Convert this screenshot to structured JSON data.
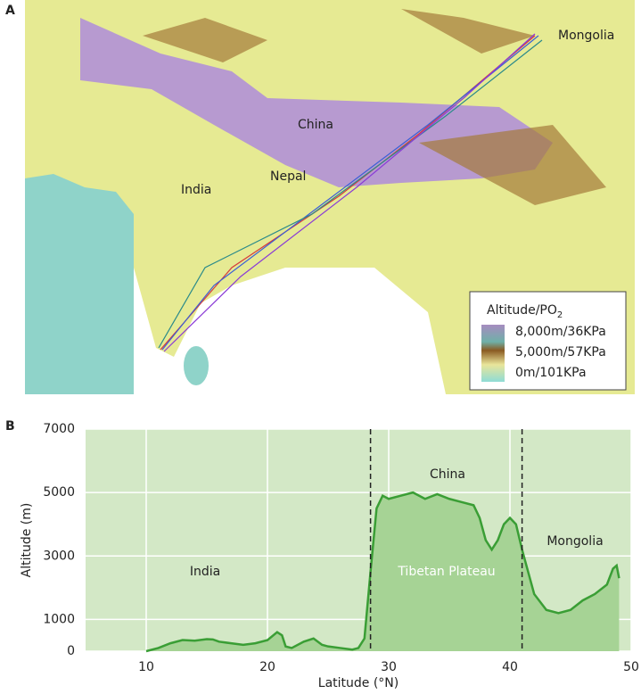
{
  "panel_a": {
    "label": "A",
    "places": [
      "Mongolia",
      "China",
      "Nepal",
      "India"
    ],
    "legend": {
      "title": "Altitude/PO",
      "title_sub": "2",
      "items": [
        "8,000m/36KPa",
        "5,000m/57KPa",
        "0m/101KPa"
      ]
    }
  },
  "chart_data": {
    "type": "area",
    "panel_label": "B",
    "x_label": "Latitude (°N)",
    "y_label": "Altitude (m)",
    "x": [
      10,
      11,
      12,
      13,
      14,
      15,
      15.5,
      16,
      17,
      18,
      19,
      20,
      20.8,
      21.2,
      21.5,
      22,
      23,
      23.8,
      24.5,
      25,
      26,
      27,
      27.5,
      28,
      28.5,
      29,
      29.5,
      30,
      31,
      32,
      33,
      34,
      35,
      36,
      37,
      37.5,
      38,
      38.5,
      39,
      39.5,
      40,
      40.5,
      41,
      42,
      43,
      44,
      45,
      46,
      47,
      48,
      48.5,
      48.8,
      49
    ],
    "values": [
      0,
      100,
      250,
      350,
      330,
      380,
      370,
      300,
      250,
      200,
      250,
      350,
      600,
      500,
      150,
      100,
      300,
      400,
      200,
      150,
      100,
      50,
      100,
      400,
      2500,
      4500,
      4900,
      4800,
      4900,
      5000,
      4800,
      4950,
      4800,
      4700,
      4600,
      4200,
      3500,
      3200,
      3500,
      4000,
      4200,
      4000,
      3200,
      1800,
      1300,
      1200,
      1300,
      1600,
      1800,
      2100,
      2600,
      2700,
      2300
    ],
    "color": "#3a9e35",
    "fill": "#a6d395",
    "xlim": [
      5,
      50
    ],
    "xticks": [
      10,
      20,
      30,
      40,
      50
    ],
    "ylim": [
      0,
      7000
    ],
    "yticks": [
      0,
      1000,
      3000,
      5000,
      7000
    ],
    "grid": true,
    "boundaries": [
      28.5,
      41
    ],
    "region_labels": [
      "India",
      "China",
      "Tibetan Plateau",
      "Mongolia"
    ]
  }
}
